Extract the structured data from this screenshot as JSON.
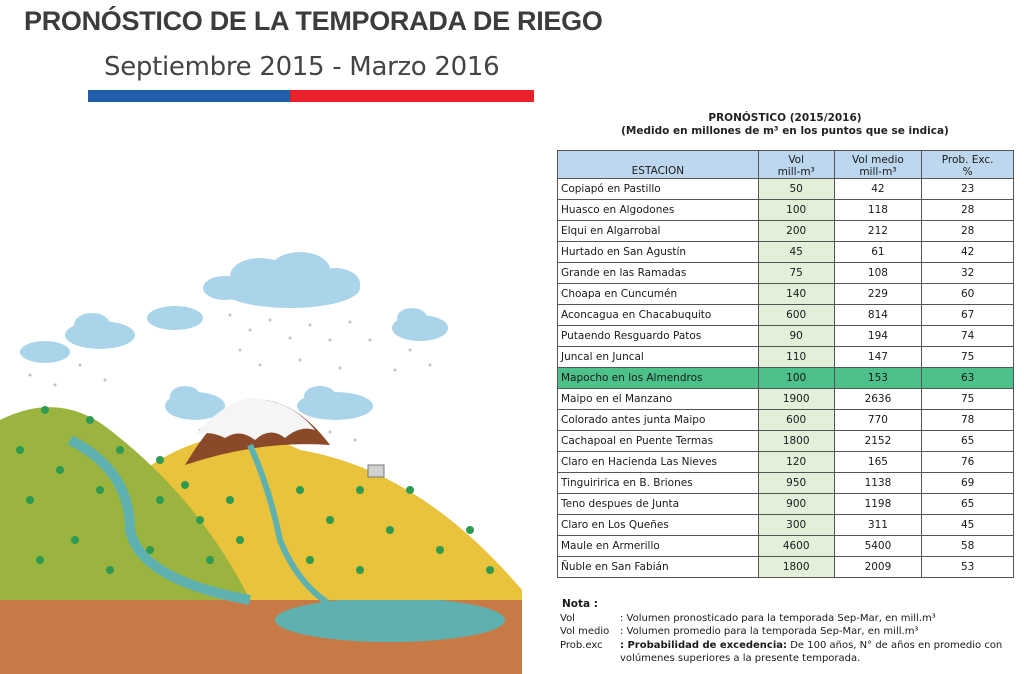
{
  "header": {
    "title": "PRONÓSTICO DE LA TEMPORADA DE RIEGO",
    "subtitle": "Septiembre 2015 - Marzo 2016",
    "bar_colors": {
      "blue": "#1f5fa8",
      "red": "#e8212a"
    }
  },
  "forecast": {
    "title": "PRONÓSTICO (2015/2016)",
    "subtitle": "(Medido en millones de m³ en los puntos que se indica)",
    "columns": {
      "station": "ESTACION",
      "vol_line1": "Vol",
      "vol_line2": "mill-m³",
      "volmedio_line1": "Vol medio",
      "volmedio_line2": "mill-m³",
      "prob_line1": "Prob. Exc.",
      "prob_line2": "%"
    },
    "highlight_color": "#4cc28a",
    "rows": [
      {
        "station": "Copiapó en Pastillo",
        "vol": "50",
        "vol_medio": "42",
        "prob": "23"
      },
      {
        "station": "Huasco en Algodones",
        "vol": "100",
        "vol_medio": "118",
        "prob": "28"
      },
      {
        "station": "Elqui en Algarrobal",
        "vol": "200",
        "vol_medio": "212",
        "prob": "28"
      },
      {
        "station": "Hurtado en San Agustín",
        "vol": "45",
        "vol_medio": "61",
        "prob": "42"
      },
      {
        "station": "Grande en las Ramadas",
        "vol": "75",
        "vol_medio": "108",
        "prob": "32"
      },
      {
        "station": "Choapa en Cuncumén",
        "vol": "140",
        "vol_medio": "229",
        "prob": "60"
      },
      {
        "station": "Aconcagua en Chacabuquito",
        "vol": "600",
        "vol_medio": "814",
        "prob": "67"
      },
      {
        "station": "Putaendo Resguardo Patos",
        "vol": "90",
        "vol_medio": "194",
        "prob": "74"
      },
      {
        "station": "Juncal en Juncal",
        "vol": "110",
        "vol_medio": "147",
        "prob": "75"
      },
      {
        "station": "Mapocho en los Almendros",
        "vol": "100",
        "vol_medio": "153",
        "prob": "63"
      },
      {
        "station": "Maipo en el Manzano",
        "vol": "1900",
        "vol_medio": "2636",
        "prob": "75"
      },
      {
        "station": "Colorado antes junta Maipo",
        "vol": "600",
        "vol_medio": "770",
        "prob": "78"
      },
      {
        "station": "Cachapoal en Puente Termas",
        "vol": "1800",
        "vol_medio": "2152",
        "prob": "65"
      },
      {
        "station": "Claro en Hacienda Las Nieves",
        "vol": "120",
        "vol_medio": "165",
        "prob": "76"
      },
      {
        "station": "Tinguiririca en B. Briones",
        "vol": "950",
        "vol_medio": "1138",
        "prob": "69"
      },
      {
        "station": "Teno despues de Junta",
        "vol": "900",
        "vol_medio": "1198",
        "prob": "65"
      },
      {
        "station": "Claro en Los Queñes",
        "vol": "300",
        "vol_medio": "311",
        "prob": "45"
      },
      {
        "station": "Maule en Armerillo",
        "vol": "4600",
        "vol_medio": "5400",
        "prob": "58"
      },
      {
        "station": "Ñuble en San Fabián",
        "vol": "1800",
        "vol_medio": "2009",
        "prob": "53"
      }
    ]
  },
  "notes": {
    "title": "Nota :",
    "items": [
      {
        "key": "Vol",
        "value": ": Volumen pronosticado para la temporada Sep-Mar, en mill.m³"
      },
      {
        "key": "Vol medio",
        "value": ": Volumen promedio para la temporada Sep-Mar, en mill.m³"
      }
    ],
    "prob": {
      "key": "Prob.exc",
      "label": ": Probabilidad de excedencia:",
      "text": "De 100 años, N° de años en promedio con volúmenes superiores a la presente temporada."
    }
  }
}
